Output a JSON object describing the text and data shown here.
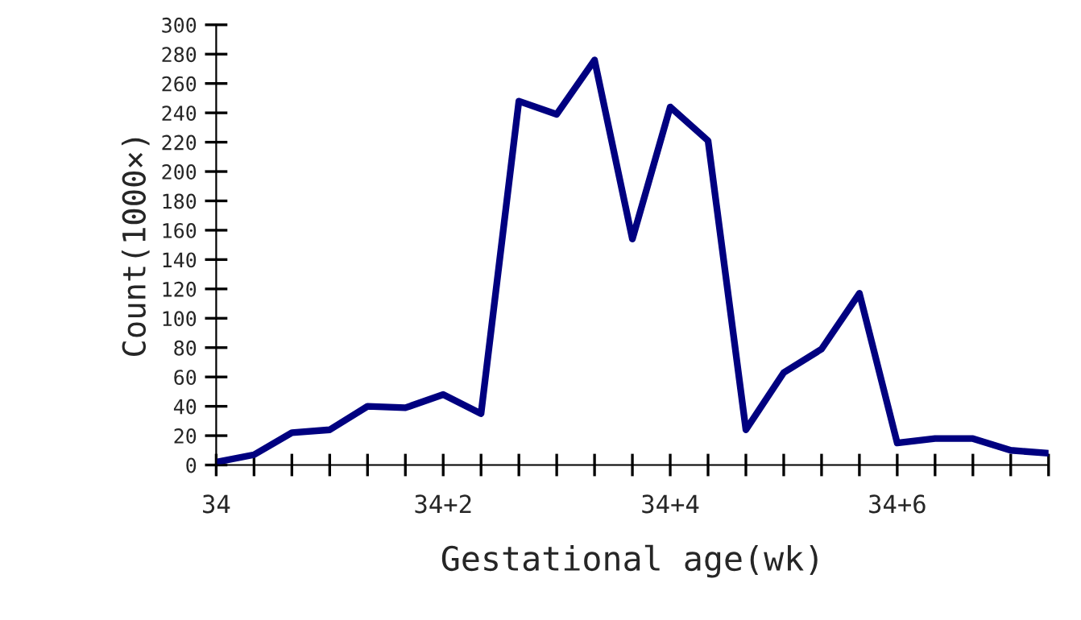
{
  "chart_data": {
    "type": "line",
    "xlabel": "Gestational age(wk)",
    "ylabel": "Count(1000×)",
    "categories": [
      "34",
      null,
      null,
      null,
      null,
      null,
      "34+2",
      null,
      null,
      null,
      null,
      null,
      "34+4",
      null,
      null,
      null,
      null,
      null,
      "34+6",
      null,
      null,
      null,
      null
    ],
    "series": [
      {
        "color": "#000080",
        "values": [
          2,
          7,
          22,
          24,
          40,
          39,
          48,
          35,
          248,
          239,
          276,
          154,
          244,
          221,
          24,
          63,
          79,
          117,
          15,
          18,
          18,
          10,
          8
        ]
      }
    ],
    "ylim": [
      0,
      300
    ],
    "yticks": [
      0,
      20,
      40,
      60,
      80,
      100,
      120,
      140,
      160,
      180,
      200,
      220,
      240,
      260,
      280,
      300
    ],
    "grid": false,
    "legend": false,
    "marker": "none",
    "line_style": "solid"
  }
}
